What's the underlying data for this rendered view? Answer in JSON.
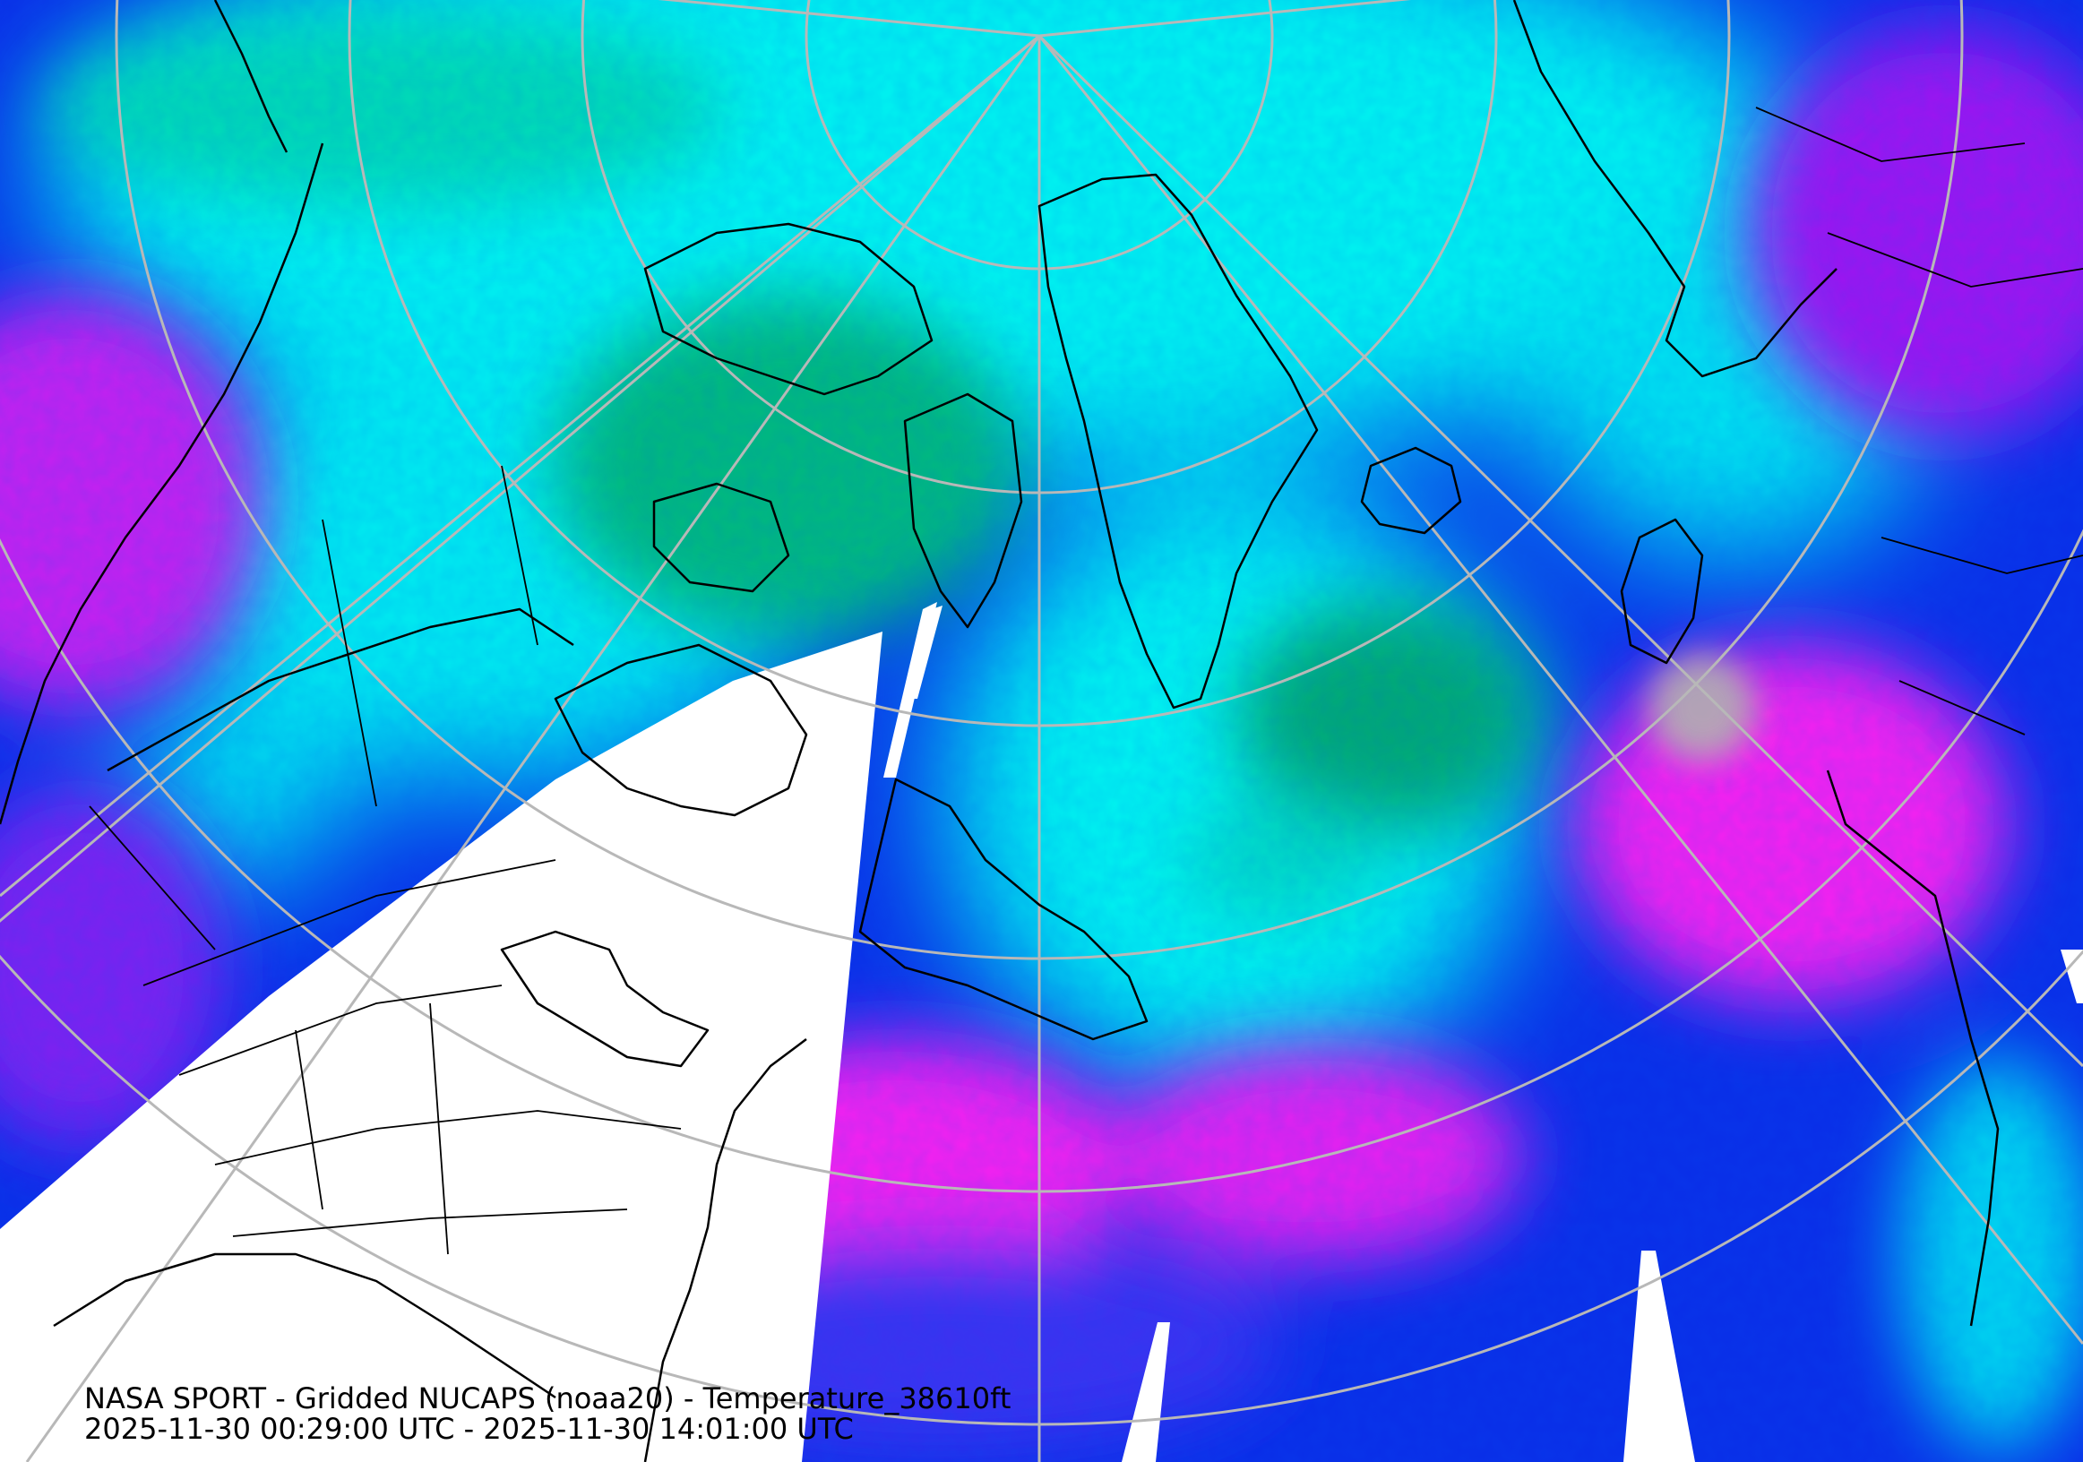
{
  "map": {
    "title_line": "NASA SPORT - Gridded NUCAPS (noaa20) - Temperature_38610ft",
    "time_range_line": "2025-11-30 00:29:00 UTC - 2025-11-30 14:01:00 UTC",
    "colors": {
      "base_blue": "#0a2fe8",
      "cyan": "#00f0f0",
      "teal": "#00d8b8",
      "green": "#00b87a",
      "magenta": "#f020f0",
      "violet": "#8a1ef0",
      "no_data": "#ffffff",
      "missing_grey": "#a8a8a8",
      "graticule": "#b8b8b8",
      "coastline": "#000000"
    }
  }
}
